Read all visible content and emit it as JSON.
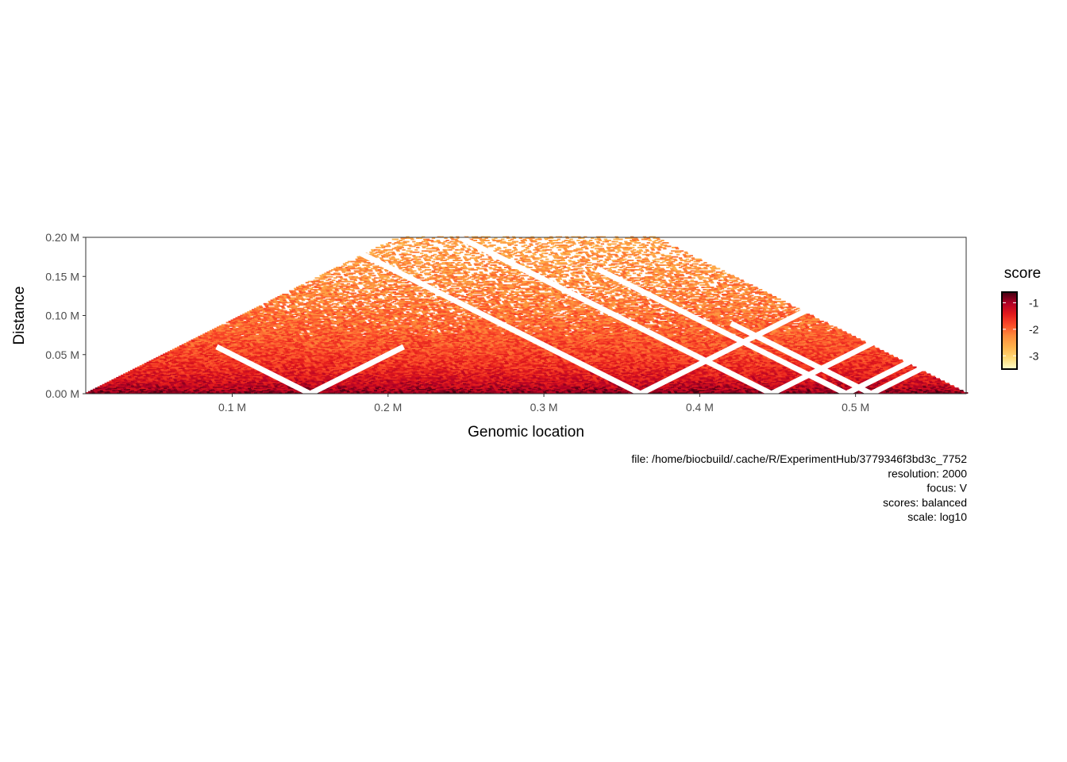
{
  "chart_data": {
    "type": "heatmap",
    "title": "",
    "xlabel": "Genomic location",
    "ylabel": "Distance",
    "xlim": [
      6000,
      571000
    ],
    "ylim": [
      0,
      200000
    ],
    "x_ticks": [
      {
        "value": 100000,
        "label": "0.1 M"
      },
      {
        "value": 200000,
        "label": "0.2 M"
      },
      {
        "value": 300000,
        "label": "0.3 M"
      },
      {
        "value": 400000,
        "label": "0.4 M"
      },
      {
        "value": 500000,
        "label": "0.5 M"
      }
    ],
    "y_ticks": [
      {
        "value": 0,
        "label": "0.00 M"
      },
      {
        "value": 50000,
        "label": "0.05 M"
      },
      {
        "value": 100000,
        "label": "0.10 M"
      },
      {
        "value": 150000,
        "label": "0.15 M"
      },
      {
        "value": 200000,
        "label": "0.20 M"
      }
    ],
    "data_extent": {
      "x_start": 6000,
      "x_end": 571000,
      "max_distance": 200000
    },
    "resolution": 2000,
    "masked_bins": [
      {
        "position": 150000,
        "reach": 60000
      },
      {
        "position": 362000,
        "reach": 200000
      },
      {
        "position": 446000,
        "reach": 200000
      },
      {
        "position": 494000,
        "reach": 160000
      },
      {
        "position": 510000,
        "reach": 90000
      }
    ],
    "grid": false,
    "legend": {
      "title": "score",
      "position": "right",
      "range": [
        -3.5,
        -0.6
      ],
      "ticks": [
        {
          "value": -1,
          "label": "-1"
        },
        {
          "value": -2,
          "label": "-2"
        },
        {
          "value": -3,
          "label": "-3"
        }
      ],
      "colors": [
        "#ffffcc",
        "#fed976",
        "#feb24c",
        "#fd8d3c",
        "#fc4e2a",
        "#e31a1c",
        "#b10026",
        "#400010"
      ]
    },
    "caption": [
      "file: /home/biocbuild/.cache/R/ExperimentHub/3779346f3bd3c_7752",
      "resolution: 2000",
      "focus: V",
      "scores: balanced",
      "scale: log10"
    ]
  }
}
